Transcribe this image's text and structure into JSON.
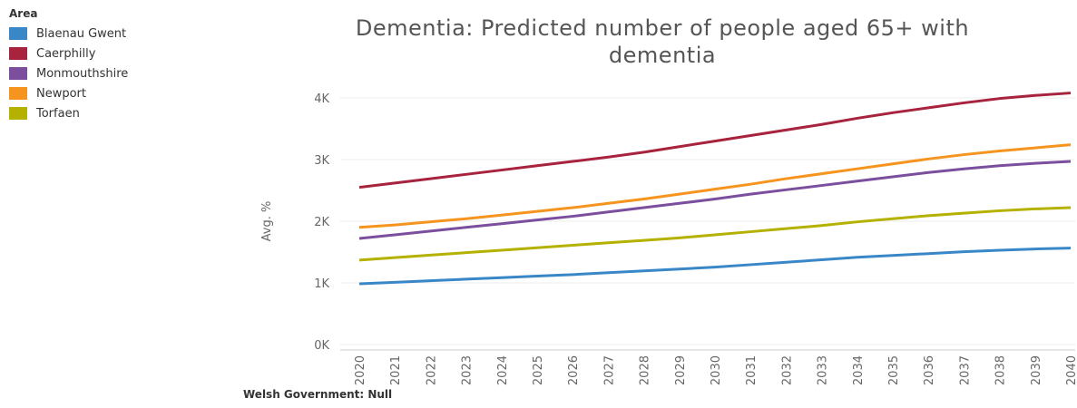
{
  "chart_data": {
    "type": "line",
    "title": "Dementia: Predicted number of people aged 65+ with dementia",
    "y_label": "Avg. %",
    "legend_title": "Area",
    "footer": "Welsh Government: Null",
    "x": [
      2020,
      2021,
      2022,
      2023,
      2024,
      2025,
      2026,
      2027,
      2028,
      2029,
      2030,
      2031,
      2032,
      2033,
      2034,
      2035,
      2036,
      2037,
      2038,
      2039,
      2040
    ],
    "ylim": [
      0,
      4200
    ],
    "yticks": [
      {
        "value": 0,
        "label": "0K"
      },
      {
        "value": 1000,
        "label": "1K"
      },
      {
        "value": 2000,
        "label": "2K"
      },
      {
        "value": 3000,
        "label": "3K"
      },
      {
        "value": 4000,
        "label": "4K"
      }
    ],
    "grid": true,
    "legend": "top-left",
    "series": [
      {
        "name": "Blaenau Gwent",
        "color": "#3a87c8",
        "values": [
          985,
          1010,
          1035,
          1060,
          1085,
          1110,
          1135,
          1165,
          1195,
          1225,
          1255,
          1295,
          1335,
          1375,
          1415,
          1445,
          1475,
          1505,
          1530,
          1550,
          1565
        ]
      },
      {
        "name": "Caerphilly",
        "color": "#a8233d",
        "values": [
          2550,
          2620,
          2690,
          2760,
          2830,
          2900,
          2970,
          3040,
          3120,
          3210,
          3300,
          3390,
          3480,
          3570,
          3670,
          3760,
          3840,
          3920,
          3990,
          4040,
          4080
        ]
      },
      {
        "name": "Monmouthshire",
        "color": "#7b4f9e",
        "values": [
          1720,
          1780,
          1840,
          1900,
          1960,
          2020,
          2080,
          2150,
          2220,
          2290,
          2360,
          2440,
          2510,
          2580,
          2650,
          2720,
          2790,
          2850,
          2900,
          2940,
          2970
        ]
      },
      {
        "name": "Newport",
        "color": "#f5941e",
        "values": [
          1900,
          1940,
          1990,
          2040,
          2100,
          2160,
          2220,
          2290,
          2360,
          2440,
          2520,
          2600,
          2690,
          2770,
          2850,
          2930,
          3010,
          3080,
          3140,
          3190,
          3240
        ]
      },
      {
        "name": "Torfaen",
        "color": "#b5b100",
        "values": [
          1370,
          1410,
          1450,
          1490,
          1530,
          1570,
          1610,
          1650,
          1690,
          1730,
          1780,
          1830,
          1880,
          1930,
          1990,
          2040,
          2090,
          2130,
          2170,
          2200,
          2220
        ]
      }
    ]
  }
}
